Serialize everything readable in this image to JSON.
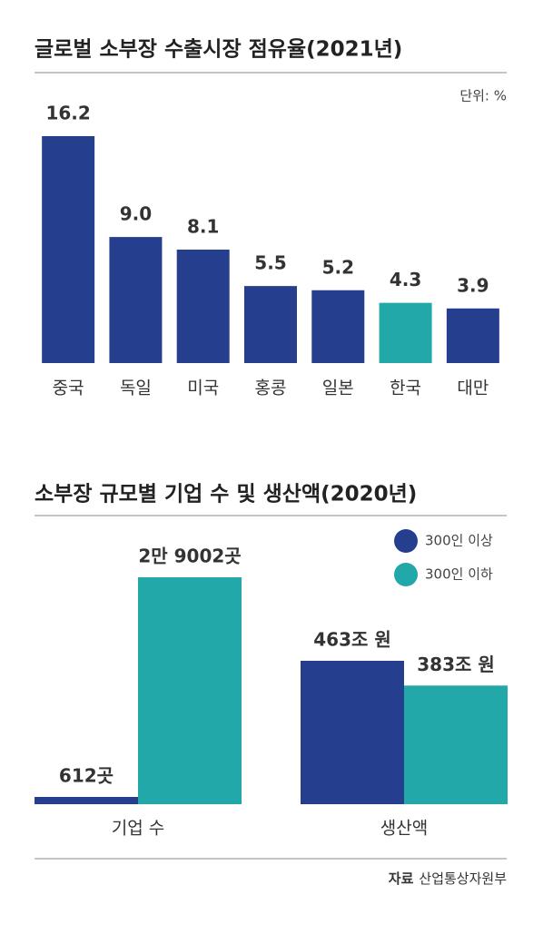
{
  "chart_data": [
    {
      "type": "bar",
      "title": "글로벌 소부장 수출시장 점유율(2021년)",
      "unit": "단위: %",
      "categories": [
        "중국",
        "독일",
        "미국",
        "홍콩",
        "일본",
        "한국",
        "대만"
      ],
      "values": [
        16.2,
        9.0,
        8.1,
        5.5,
        5.2,
        4.3,
        3.9
      ],
      "value_labels": [
        "16.2",
        "9.0",
        "8.1",
        "5.5",
        "5.2",
        "4.3",
        "3.9"
      ],
      "colors": [
        "#253f8e",
        "#253f8e",
        "#253f8e",
        "#253f8e",
        "#253f8e",
        "#22a8a8",
        "#253f8e"
      ]
    },
    {
      "type": "grouped_bar",
      "title": "소부장 규모별 기업 수 및 생산액(2020년)",
      "categories": [
        "기업 수",
        "생산액"
      ],
      "series": [
        {
          "name": "300인 이상",
          "color": "#253f8e",
          "values": [
            612,
            463
          ],
          "value_labels": [
            "612곳",
            "463조 원"
          ]
        },
        {
          "name": "300인 이하",
          "color": "#22a8a8",
          "values": [
            29002,
            383
          ],
          "value_labels": [
            "2만 9002곳",
            "383조 원"
          ]
        }
      ]
    }
  ],
  "source": {
    "label": "자료",
    "name": "산업통상자원부"
  }
}
